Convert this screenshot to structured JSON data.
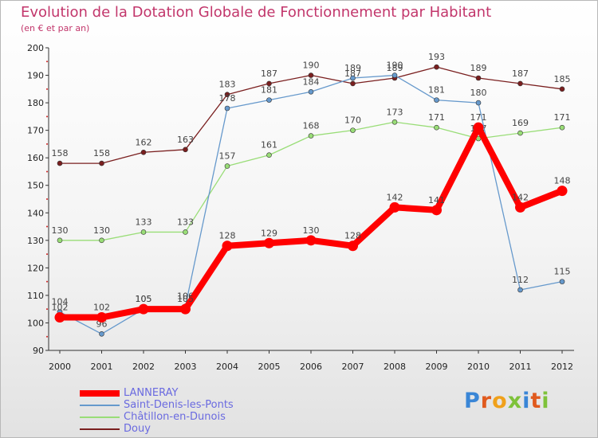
{
  "chart_data": {
    "type": "line",
    "title": "Evolution de la Dotation Globale de Fonctionnement par Habitant",
    "subtitle": "(en € et par an)",
    "xlabel": "",
    "ylabel": "",
    "ylim": [
      90,
      200
    ],
    "yticks": [
      90,
      100,
      110,
      120,
      130,
      140,
      150,
      160,
      170,
      180,
      190,
      200
    ],
    "categories": [
      "2000",
      "2001",
      "2002",
      "2003",
      "2004",
      "2005",
      "2006",
      "2007",
      "2008",
      "2009",
      "2010",
      "2011",
      "2012"
    ],
    "series": [
      {
        "name": "Douy",
        "color": "#7a1f1f",
        "values": [
          158,
          158,
          162,
          163,
          183,
          187,
          190,
          187,
          189,
          193,
          189,
          187,
          185
        ]
      },
      {
        "name": "Châtillon-en-Dunois",
        "color": "#99dd77",
        "values": [
          130,
          130,
          133,
          133,
          157,
          161,
          168,
          170,
          173,
          171,
          167,
          169,
          171
        ]
      },
      {
        "name": "Saint-Denis-les-Ponts",
        "color": "#6699cc",
        "values": [
          104,
          96,
          105,
          106,
          178,
          181,
          184,
          189,
          190,
          181,
          180,
          112,
          115
        ]
      },
      {
        "name": "LANNERAY",
        "color": "#ff0000",
        "values": [
          102,
          102,
          105,
          105,
          128,
          129,
          130,
          128,
          142,
          141,
          171,
          142,
          148
        ]
      }
    ],
    "legend_order": [
      "LANNERAY",
      "Saint-Denis-les-Ponts",
      "Châtillon-en-Dunois",
      "Douy"
    ],
    "legend_position": "bottom-left"
  },
  "logo": {
    "letters": [
      "P",
      "r",
      "o",
      "x",
      "i",
      "t",
      "i"
    ],
    "colors": [
      "#3a86d6",
      "#e05a1e",
      "#f0a11b",
      "#7ec23a",
      "#3a86d6",
      "#e05a1e",
      "#7ec23a"
    ]
  }
}
